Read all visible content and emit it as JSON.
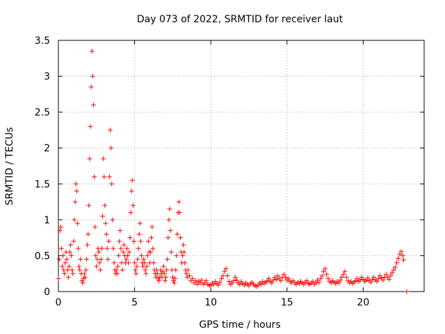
{
  "chart_data": {
    "type": "scatter",
    "title": "Day 073 of 2022, SRMTID for receiver laut",
    "xlabel": "GPS time / hours",
    "ylabel": "SRMTID / TECUs",
    "xlim": [
      0,
      24
    ],
    "ylim": [
      0,
      3.5
    ],
    "x_ticks": [
      0,
      5,
      10,
      15,
      20
    ],
    "x_tick_labels": [
      "0",
      "5",
      "10",
      "15",
      "20"
    ],
    "y_ticks": [
      0,
      0.5,
      1,
      1.5,
      2,
      2.5,
      3,
      3.5
    ],
    "y_tick_labels": [
      "0",
      "0.5",
      "1",
      "1.5",
      "2",
      "2.5",
      "3",
      "3.5"
    ],
    "grid": true,
    "marker": "+",
    "series": [
      {
        "name": "SRMTID",
        "color": "#ff0000",
        "points": [
          [
            0.0,
            0.18
          ],
          [
            0.05,
            0.45
          ],
          [
            0.1,
            0.85
          ],
          [
            0.15,
            0.9
          ],
          [
            0.2,
            0.6
          ],
          [
            0.25,
            0.35
          ],
          [
            0.3,
            0.5
          ],
          [
            0.35,
            0.3
          ],
          [
            0.4,
            0.25
          ],
          [
            0.45,
            0.4
          ],
          [
            0.5,
            0.55
          ],
          [
            0.55,
            0.45
          ],
          [
            0.6,
            0.3
          ],
          [
            0.65,
            0.2
          ],
          [
            0.7,
            0.35
          ],
          [
            0.75,
            0.55
          ],
          [
            0.8,
            0.65
          ],
          [
            0.85,
            0.5
          ],
          [
            0.9,
            0.3
          ],
          [
            0.95,
            0.25
          ],
          [
            1.0,
            0.7
          ],
          [
            1.05,
            1.0
          ],
          [
            1.1,
            1.25
          ],
          [
            1.15,
            1.5
          ],
          [
            1.2,
            1.4
          ],
          [
            1.25,
            0.95
          ],
          [
            1.3,
            0.6
          ],
          [
            1.35,
            0.35
          ],
          [
            1.4,
            0.3
          ],
          [
            1.45,
            0.45
          ],
          [
            1.5,
            0.25
          ],
          [
            1.55,
            0.15
          ],
          [
            1.6,
            0.12
          ],
          [
            1.65,
            0.18
          ],
          [
            1.7,
            0.25
          ],
          [
            1.75,
            0.2
          ],
          [
            1.8,
            0.3
          ],
          [
            1.85,
            0.45
          ],
          [
            1.9,
            0.65
          ],
          [
            1.95,
            0.8
          ],
          [
            2.0,
            1.2
          ],
          [
            2.05,
            1.85
          ],
          [
            2.1,
            2.3
          ],
          [
            2.15,
            2.85
          ],
          [
            2.2,
            3.35
          ],
          [
            2.25,
            3.0
          ],
          [
            2.3,
            2.6
          ],
          [
            2.35,
            1.6
          ],
          [
            2.4,
            0.9
          ],
          [
            2.45,
            0.5
          ],
          [
            2.5,
            0.35
          ],
          [
            2.55,
            0.45
          ],
          [
            2.6,
            0.6
          ],
          [
            2.65,
            0.55
          ],
          [
            2.7,
            0.4
          ],
          [
            2.75,
            0.3
          ],
          [
            2.8,
            0.45
          ],
          [
            2.85,
            0.6
          ],
          [
            2.9,
            1.05
          ],
          [
            2.95,
            1.85
          ],
          [
            3.0,
            1.6
          ],
          [
            3.05,
            1.2
          ],
          [
            3.1,
            0.95
          ],
          [
            3.15,
            0.8
          ],
          [
            3.2,
            0.6
          ],
          [
            3.25,
            0.45
          ],
          [
            3.3,
            0.7
          ],
          [
            3.35,
            1.6
          ],
          [
            3.4,
            2.25
          ],
          [
            3.45,
            2.0
          ],
          [
            3.5,
            1.5
          ],
          [
            3.55,
            1.0
          ],
          [
            3.6,
            0.6
          ],
          [
            3.65,
            0.4
          ],
          [
            3.7,
            0.3
          ],
          [
            3.75,
            0.25
          ],
          [
            3.8,
            0.3
          ],
          [
            3.85,
            0.25
          ],
          [
            3.9,
            0.35
          ],
          [
            3.95,
            0.5
          ],
          [
            4.0,
            0.7
          ],
          [
            4.05,
            0.85
          ],
          [
            4.1,
            0.6
          ],
          [
            4.15,
            0.4
          ],
          [
            4.2,
            0.3
          ],
          [
            4.25,
            0.55
          ],
          [
            4.3,
            0.65
          ],
          [
            4.35,
            0.5
          ],
          [
            4.4,
            0.4
          ],
          [
            4.45,
            0.45
          ],
          [
            4.5,
            0.6
          ],
          [
            4.55,
            0.5
          ],
          [
            4.6,
            0.4
          ],
          [
            4.65,
            0.55
          ],
          [
            4.7,
            0.75
          ],
          [
            4.75,
            1.1
          ],
          [
            4.8,
            1.4
          ],
          [
            4.85,
            1.55
          ],
          [
            4.9,
            1.2
          ],
          [
            4.95,
            0.7
          ],
          [
            5.0,
            0.4
          ],
          [
            5.05,
            0.3
          ],
          [
            5.1,
            0.25
          ],
          [
            5.15,
            0.35
          ],
          [
            5.2,
            0.45
          ],
          [
            5.25,
            0.6
          ],
          [
            5.3,
            0.8
          ],
          [
            5.35,
            0.95
          ],
          [
            5.4,
            0.7
          ],
          [
            5.45,
            0.5
          ],
          [
            5.5,
            0.4
          ],
          [
            5.55,
            0.35
          ],
          [
            5.6,
            0.45
          ],
          [
            5.65,
            0.4
          ],
          [
            5.7,
            0.3
          ],
          [
            5.75,
            0.25
          ],
          [
            5.8,
            0.35
          ],
          [
            5.85,
            0.5
          ],
          [
            5.9,
            0.7
          ],
          [
            5.95,
            0.55
          ],
          [
            6.0,
            0.4
          ],
          [
            6.05,
            0.55
          ],
          [
            6.1,
            0.75
          ],
          [
            6.15,
            0.9
          ],
          [
            6.2,
            0.6
          ],
          [
            6.25,
            0.4
          ],
          [
            6.3,
            0.3
          ],
          [
            6.35,
            0.25
          ],
          [
            6.4,
            0.2
          ],
          [
            6.45,
            0.3
          ],
          [
            6.5,
            0.25
          ],
          [
            6.55,
            0.18
          ],
          [
            6.6,
            0.15
          ],
          [
            6.65,
            0.2
          ],
          [
            6.7,
            0.3
          ],
          [
            6.75,
            0.25
          ],
          [
            6.8,
            0.2
          ],
          [
            6.85,
            0.28
          ],
          [
            6.9,
            0.35
          ],
          [
            6.95,
            0.25
          ],
          [
            7.0,
            0.15
          ],
          [
            7.05,
            0.2
          ],
          [
            7.1,
            0.3
          ],
          [
            7.15,
            0.45
          ],
          [
            7.2,
            0.75
          ],
          [
            7.25,
            1.0
          ],
          [
            7.3,
            1.15
          ],
          [
            7.35,
            0.85
          ],
          [
            7.4,
            0.55
          ],
          [
            7.45,
            0.3
          ],
          [
            7.5,
            0.2
          ],
          [
            7.55,
            0.15
          ],
          [
            7.6,
            0.12
          ],
          [
            7.65,
            0.18
          ],
          [
            7.7,
            0.3
          ],
          [
            7.75,
            0.5
          ],
          [
            7.8,
            0.8
          ],
          [
            7.85,
            1.1
          ],
          [
            7.9,
            1.25
          ],
          [
            7.95,
            1.1
          ],
          [
            8.0,
            0.75
          ],
          [
            8.05,
            0.55
          ],
          [
            8.1,
            0.4
          ],
          [
            8.15,
            0.5
          ],
          [
            8.2,
            0.65
          ],
          [
            8.25,
            0.55
          ],
          [
            8.3,
            0.4
          ],
          [
            8.35,
            0.3
          ],
          [
            8.4,
            0.25
          ],
          [
            8.45,
            0.2
          ],
          [
            8.5,
            0.3
          ],
          [
            8.6,
            0.22
          ],
          [
            8.7,
            0.15
          ],
          [
            8.8,
            0.18
          ],
          [
            8.9,
            0.12
          ],
          [
            9.0,
            0.15
          ],
          [
            9.1,
            0.1
          ],
          [
            9.2,
            0.14
          ],
          [
            9.3,
            0.12
          ],
          [
            9.4,
            0.16
          ],
          [
            9.5,
            0.1
          ],
          [
            9.6,
            0.12
          ],
          [
            9.7,
            0.15
          ],
          [
            9.8,
            0.1
          ],
          [
            9.9,
            0.09
          ],
          [
            10.0,
            0.08
          ],
          [
            10.1,
            0.12
          ],
          [
            10.2,
            0.1
          ],
          [
            10.3,
            0.14
          ],
          [
            10.4,
            0.11
          ],
          [
            10.5,
            0.09
          ],
          [
            10.6,
            0.13
          ],
          [
            10.7,
            0.18
          ],
          [
            10.8,
            0.22
          ],
          [
            10.9,
            0.28
          ],
          [
            11.0,
            0.32
          ],
          [
            11.1,
            0.22
          ],
          [
            11.2,
            0.14
          ],
          [
            11.3,
            0.1
          ],
          [
            11.4,
            0.12
          ],
          [
            11.5,
            0.15
          ],
          [
            11.6,
            0.2
          ],
          [
            11.7,
            0.16
          ],
          [
            11.8,
            0.12
          ],
          [
            11.9,
            0.1
          ],
          [
            12.0,
            0.14
          ],
          [
            12.1,
            0.11
          ],
          [
            12.2,
            0.09
          ],
          [
            12.3,
            0.12
          ],
          [
            12.4,
            0.1
          ],
          [
            12.5,
            0.08
          ],
          [
            12.6,
            0.11
          ],
          [
            12.7,
            0.13
          ],
          [
            12.8,
            0.1
          ],
          [
            12.9,
            0.08
          ],
          [
            13.0,
            0.07
          ],
          [
            13.1,
            0.09
          ],
          [
            13.2,
            0.12
          ],
          [
            13.3,
            0.1
          ],
          [
            13.4,
            0.14
          ],
          [
            13.5,
            0.11
          ],
          [
            13.6,
            0.13
          ],
          [
            13.7,
            0.15
          ],
          [
            13.8,
            0.18
          ],
          [
            13.9,
            0.14
          ],
          [
            14.0,
            0.12
          ],
          [
            14.1,
            0.16
          ],
          [
            14.2,
            0.2
          ],
          [
            14.3,
            0.17
          ],
          [
            14.4,
            0.22
          ],
          [
            14.5,
            0.18
          ],
          [
            14.6,
            0.15
          ],
          [
            14.7,
            0.2
          ],
          [
            14.8,
            0.24
          ],
          [
            14.9,
            0.2
          ],
          [
            15.0,
            0.16
          ],
          [
            15.1,
            0.18
          ],
          [
            15.2,
            0.14
          ],
          [
            15.3,
            0.12
          ],
          [
            15.4,
            0.15
          ],
          [
            15.5,
            0.12
          ],
          [
            15.6,
            0.1
          ],
          [
            15.7,
            0.13
          ],
          [
            15.8,
            0.11
          ],
          [
            15.9,
            0.14
          ],
          [
            16.0,
            0.12
          ],
          [
            16.1,
            0.1
          ],
          [
            16.2,
            0.13
          ],
          [
            16.3,
            0.15
          ],
          [
            16.4,
            0.11
          ],
          [
            16.5,
            0.1
          ],
          [
            16.6,
            0.12
          ],
          [
            16.7,
            0.14
          ],
          [
            16.8,
            0.1
          ],
          [
            16.9,
            0.12
          ],
          [
            17.0,
            0.16
          ],
          [
            17.1,
            0.13
          ],
          [
            17.2,
            0.18
          ],
          [
            17.3,
            0.22
          ],
          [
            17.4,
            0.28
          ],
          [
            17.5,
            0.32
          ],
          [
            17.6,
            0.24
          ],
          [
            17.7,
            0.18
          ],
          [
            17.8,
            0.14
          ],
          [
            17.9,
            0.12
          ],
          [
            18.0,
            0.15
          ],
          [
            18.1,
            0.13
          ],
          [
            18.2,
            0.11
          ],
          [
            18.3,
            0.14
          ],
          [
            18.4,
            0.12
          ],
          [
            18.5,
            0.16
          ],
          [
            18.6,
            0.2
          ],
          [
            18.7,
            0.24
          ],
          [
            18.8,
            0.28
          ],
          [
            18.9,
            0.2
          ],
          [
            19.0,
            0.15
          ],
          [
            19.1,
            0.12
          ],
          [
            19.2,
            0.14
          ],
          [
            19.3,
            0.11
          ],
          [
            19.4,
            0.13
          ],
          [
            19.5,
            0.15
          ],
          [
            19.6,
            0.18
          ],
          [
            19.7,
            0.14
          ],
          [
            19.8,
            0.16
          ],
          [
            19.9,
            0.2
          ],
          [
            20.0,
            0.17
          ],
          [
            20.1,
            0.14
          ],
          [
            20.2,
            0.16
          ],
          [
            20.3,
            0.19
          ],
          [
            20.4,
            0.15
          ],
          [
            20.5,
            0.13
          ],
          [
            20.6,
            0.17
          ],
          [
            20.7,
            0.2
          ],
          [
            20.8,
            0.16
          ],
          [
            20.9,
            0.14
          ],
          [
            21.0,
            0.18
          ],
          [
            21.1,
            0.22
          ],
          [
            21.2,
            0.19
          ],
          [
            21.3,
            0.16
          ],
          [
            21.4,
            0.2
          ],
          [
            21.5,
            0.24
          ],
          [
            21.6,
            0.2
          ],
          [
            21.7,
            0.17
          ],
          [
            21.8,
            0.22
          ],
          [
            21.9,
            0.26
          ],
          [
            22.0,
            0.3
          ],
          [
            22.1,
            0.34
          ],
          [
            22.2,
            0.4
          ],
          [
            22.3,
            0.46
          ],
          [
            22.4,
            0.52
          ],
          [
            22.5,
            0.56
          ],
          [
            22.6,
            0.5
          ],
          [
            22.65,
            0.44
          ],
          [
            22.85,
            0.0
          ]
        ]
      }
    ]
  }
}
